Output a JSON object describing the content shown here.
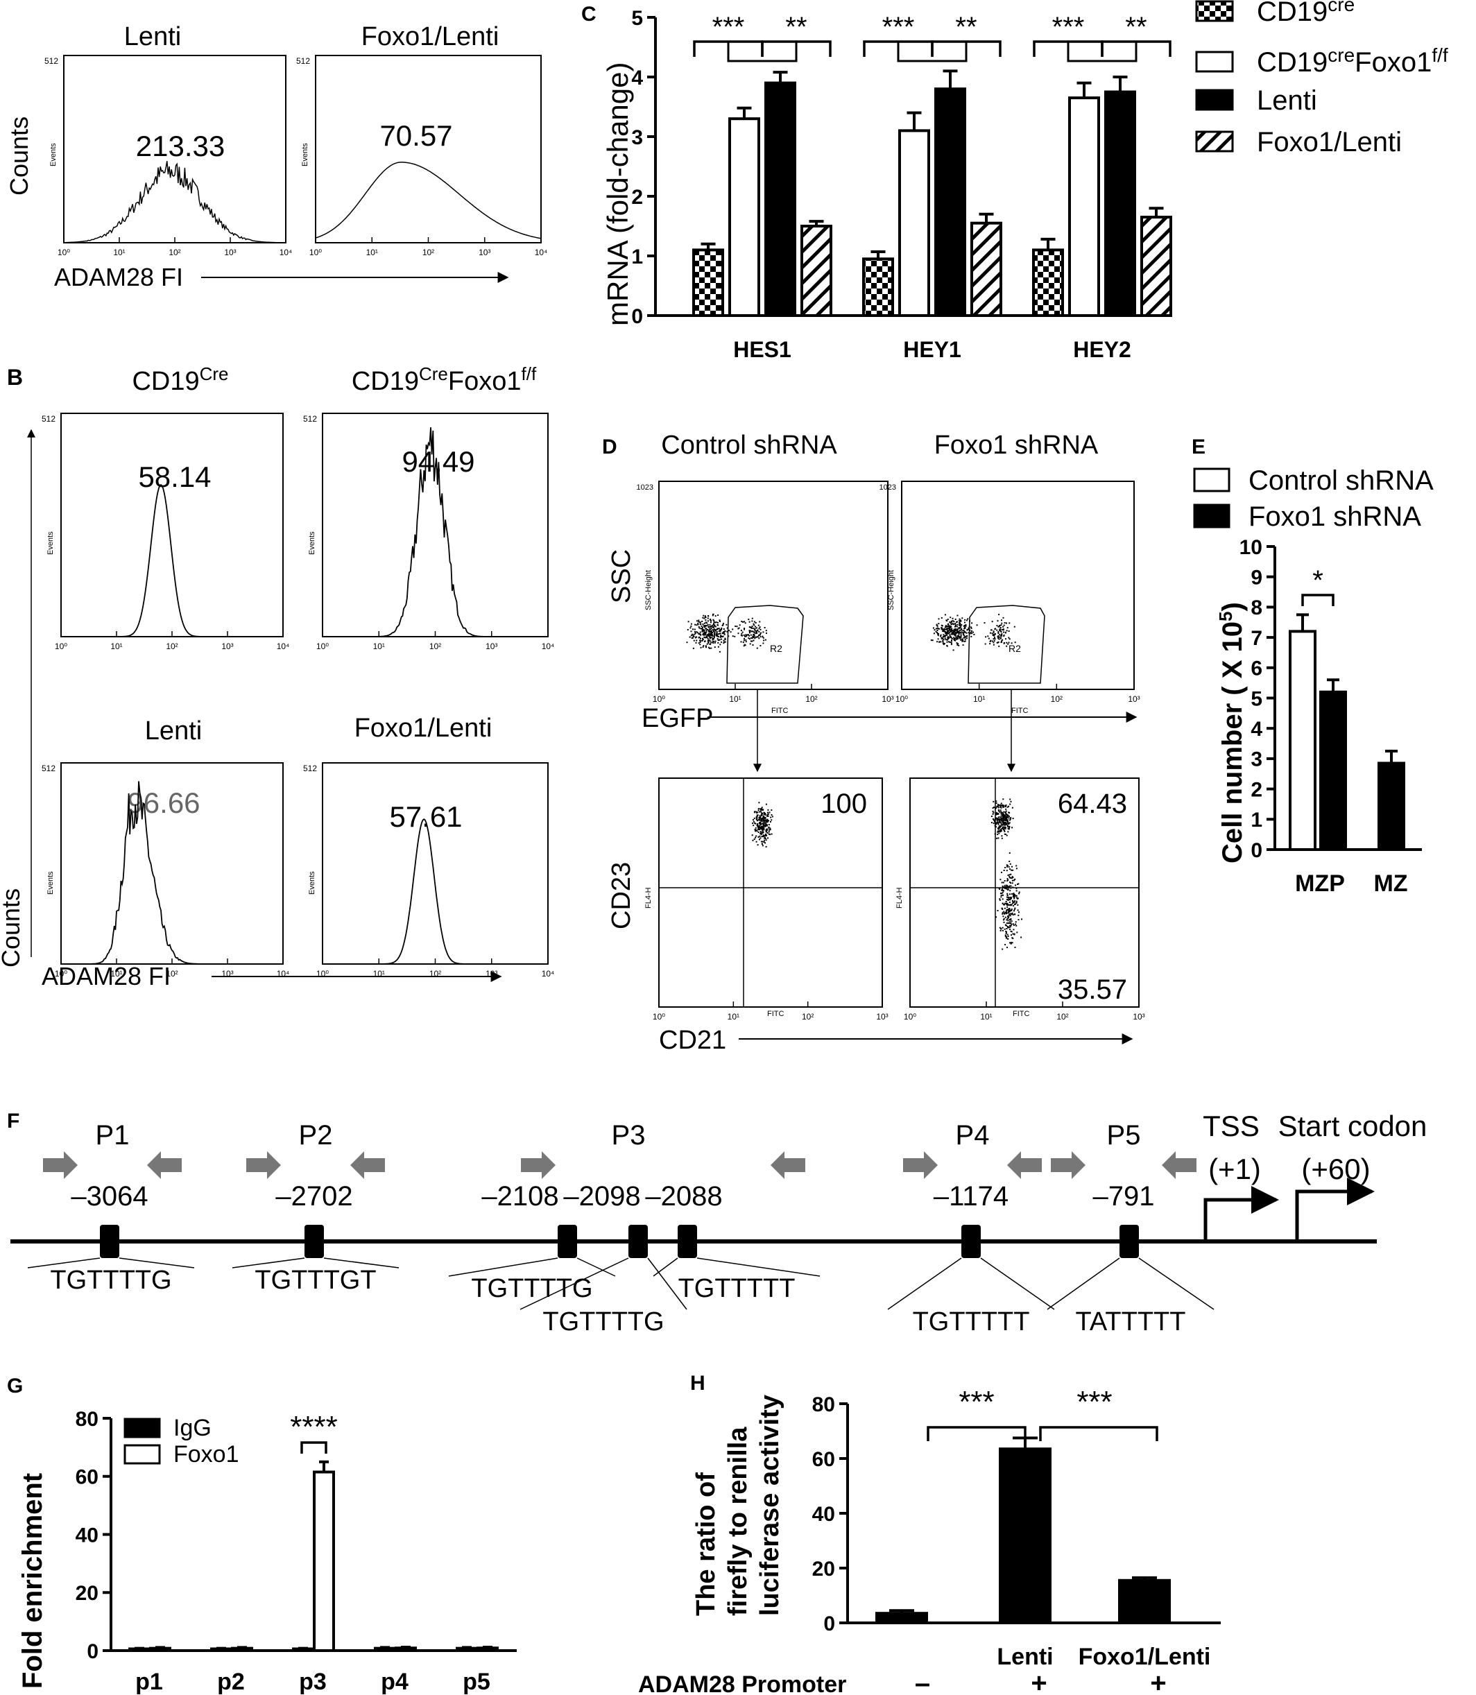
{
  "panel_letters": {
    "b": "B",
    "c": "C",
    "d": "D",
    "e": "E",
    "f": "F",
    "g": "G",
    "h": "H"
  },
  "panelA": {
    "left_title": "Lenti",
    "right_title": "Foxo1/Lenti",
    "left_value": "213.33",
    "right_value": "70.57",
    "ylabel": "Counts",
    "xlabel": "ADAM28 FI",
    "axis_top": "512",
    "axis_events": "Events",
    "ticks": [
      "10⁰",
      "10¹",
      "10²",
      "10³",
      "10⁴"
    ]
  },
  "panelB": {
    "t1": "CD19",
    "t1sup": "Cre",
    "t2": "CD19",
    "t2sup": "Cre",
    "t2b": "Foxo1",
    "t2sup2": "f/f",
    "t3": "Lenti",
    "t4": "Foxo1/Lenti",
    "v1": "58.14",
    "v2": "94.49",
    "v3": "96.66",
    "v4": "57.61",
    "ylabel": "Counts",
    "xlabel": "ADAM28 FI",
    "axis_top": "512",
    "axis_events": "Events",
    "ticks": [
      "10⁰",
      "10¹",
      "10²",
      "10³",
      "10⁴"
    ]
  },
  "panelD": {
    "left_title": "Control shRNA",
    "right_title": "Foxo1 shRNA",
    "ssc": "SSC",
    "egfp": "EGFP",
    "cd23": "CD23",
    "cd21": "CD21",
    "gate": "R2",
    "v1": "100",
    "v2": "64.43",
    "v3": "35.57",
    "ssc_axis": "SSC-Height",
    "fitc": "FITC",
    "fl4": "FL4-H",
    "top1023": "1023",
    "ticks": [
      "10⁰",
      "10¹",
      "10²",
      "10³"
    ]
  },
  "chart_data": [
    {
      "type": "bar",
      "panel": "C",
      "categories": [
        "HES1",
        "HEY1",
        "HEY2"
      ],
      "ylabel": "mRNA (fold-change)",
      "ylim": [
        0,
        5
      ],
      "yticks": [
        "0",
        "1",
        "2",
        "3",
        "4",
        "5"
      ],
      "series": [
        {
          "name": "CD19",
          "name_sup": "cre",
          "pattern": "checker",
          "values": [
            1.1,
            0.95,
            1.1
          ],
          "errors": [
            0.1,
            0.12,
            0.18
          ]
        },
        {
          "name": "CD19",
          "name_sup": "cre",
          "name2": "Foxo1",
          "name_sup2": "f/f",
          "pattern": "white",
          "values": [
            3.3,
            3.1,
            3.65
          ],
          "errors": [
            0.18,
            0.3,
            0.25
          ]
        },
        {
          "name": "Lenti",
          "pattern": "black",
          "values": [
            3.9,
            3.8,
            3.75
          ],
          "errors": [
            0.18,
            0.3,
            0.25
          ]
        },
        {
          "name": "Foxo1/Lenti",
          "pattern": "hatch",
          "values": [
            1.5,
            1.55,
            1.65
          ],
          "errors": [
            0.08,
            0.15,
            0.15
          ]
        }
      ],
      "significance": [
        "***",
        "**"
      ]
    },
    {
      "type": "bar",
      "panel": "E",
      "categories": [
        "MZP",
        "MZ"
      ],
      "ylabel": "Cell number ( X 10",
      "ylabel_sup": "5",
      "ylabel_end": ")",
      "ylim": [
        0,
        10
      ],
      "yticks": [
        "0",
        "1",
        "2",
        "3",
        "4",
        "5",
        "6",
        "7",
        "8",
        "9",
        "10"
      ],
      "series": [
        {
          "name": "Control shRNA",
          "pattern": "white",
          "values": [
            7.2,
            0
          ],
          "errors": [
            0.55,
            0
          ]
        },
        {
          "name": "Foxo1 shRNA",
          "pattern": "black",
          "values": [
            5.2,
            2.85
          ],
          "errors": [
            0.4,
            0.4
          ]
        }
      ],
      "significance": "*"
    },
    {
      "type": "bar",
      "panel": "G",
      "categories": [
        "p1",
        "p2",
        "p3",
        "p4",
        "p5"
      ],
      "ylabel": "Fold enrichment",
      "ylim": [
        0,
        80
      ],
      "yticks": [
        "0",
        "20",
        "40",
        "60",
        "80"
      ],
      "series": [
        {
          "name": "IgG",
          "pattern": "black",
          "values": [
            0.6,
            0.6,
            0.6,
            0.8,
            0.8
          ],
          "errors": [
            0.2,
            0.2,
            0.2,
            0.3,
            0.3
          ]
        },
        {
          "name": "Foxo1",
          "pattern": "white",
          "values": [
            0.8,
            0.8,
            61.5,
            0.9,
            0.9
          ],
          "errors": [
            0.3,
            0.3,
            3.5,
            0.3,
            0.3
          ]
        }
      ],
      "significance": "****"
    },
    {
      "type": "bar",
      "panel": "H",
      "categories": [
        "",
        "Lenti",
        "Foxo1/Lenti"
      ],
      "ylabel_lines": [
        "The ratio of",
        "firefly to renilla",
        "luciferase activity"
      ],
      "ylim": [
        0,
        80
      ],
      "yticks": [
        "0",
        "20",
        "40",
        "60",
        "80"
      ],
      "values": [
        3.5,
        63.5,
        15.5
      ],
      "errors": [
        1.0,
        4.0,
        1.0
      ],
      "promoter_label": "ADAM28 Promoter",
      "promoter": [
        "–",
        "+",
        "+"
      ],
      "significance": [
        "***",
        "***"
      ]
    }
  ],
  "panelF": {
    "primers": [
      "P1",
      "P2",
      "P3",
      "P4",
      "P5"
    ],
    "positions": [
      "–3064",
      "–2702",
      "–2108",
      "–2098",
      "–2088",
      "–1174",
      "–791"
    ],
    "motifs": [
      "TGTTTTG",
      "TGTTTGT",
      "TGTTTTG",
      "TGTTTTG",
      "TGTTTTT",
      "TGTTTTT",
      "TATTTTT"
    ],
    "tss": "TSS",
    "tss_pos": "(+1)",
    "start": "Start codon",
    "start_pos": "(+60)"
  }
}
